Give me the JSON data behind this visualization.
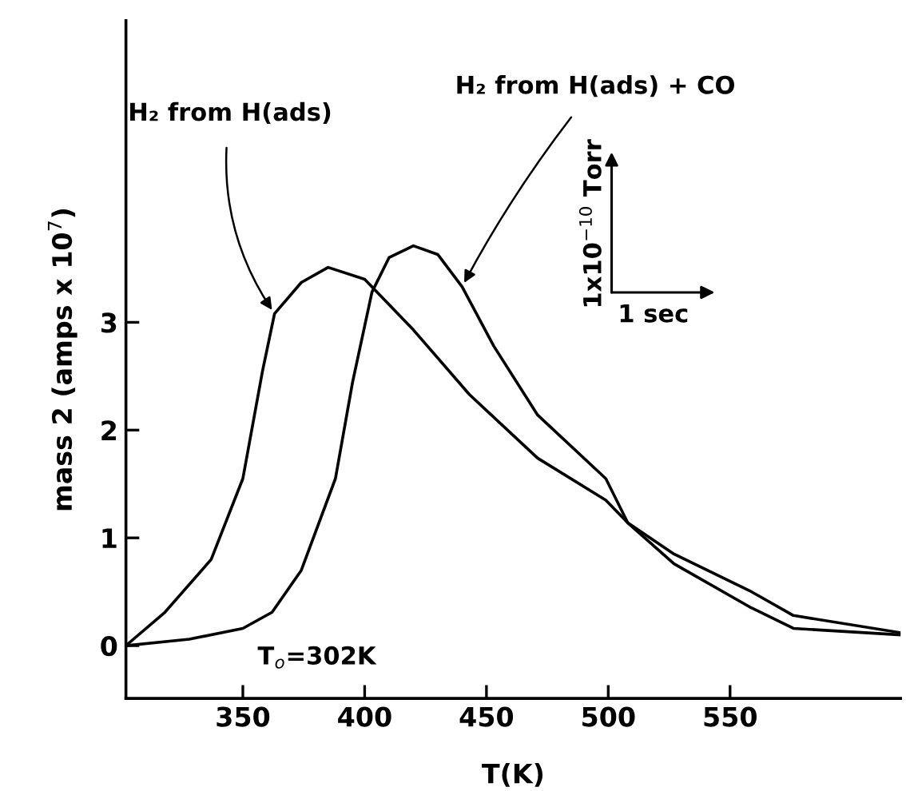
{
  "chart_data": {
    "type": "line",
    "xlabel": "T(K)",
    "ylabel": "mass 2 (amps x 10$^{7}$)",
    "xlim": [
      302,
      620
    ],
    "ylim": [
      -0.49,
      5.8
    ],
    "xticks": [
      350,
      400,
      450,
      500,
      550
    ],
    "yticks": [
      0,
      1,
      2,
      3
    ],
    "grid": false,
    "legend": false,
    "marker": "none",
    "line_style": "solid",
    "series": [
      {
        "color": "#000000",
        "x": [
          302,
          318,
          337,
          350,
          358,
          363,
          374,
          385,
          400,
          420,
          443,
          471,
          499,
          508,
          527,
          558,
          576,
          620
        ],
        "values": [
          0,
          0.31,
          0.8,
          1.55,
          2.54,
          3.08,
          3.37,
          3.51,
          3.4,
          2.93,
          2.33,
          1.74,
          1.35,
          1.14,
          0.85,
          0.51,
          0.28,
          0.12
        ]
      },
      {
        "color": "#000000",
        "x": [
          302,
          328,
          350,
          362,
          374,
          388,
          395,
          403,
          410,
          420,
          430,
          440,
          453,
          471,
          499,
          508,
          527,
          558,
          576,
          620
        ],
        "values": [
          0,
          0.06,
          0.16,
          0.31,
          0.7,
          1.55,
          2.44,
          3.28,
          3.6,
          3.71,
          3.63,
          3.33,
          2.78,
          2.14,
          1.55,
          1.14,
          0.76,
          0.36,
          0.16,
          0.1
        ]
      }
    ],
    "annotations": [
      {
        "text": "H₂ from H(ads)",
        "x": 363,
        "y": 3.08
      },
      {
        "text": "H₂ from H(ads) + CO",
        "x": 440,
        "y": 3.33
      },
      "T$_{o}$=302K",
      "1x10$^{−10}$ Torr",
      "1 sec"
    ]
  }
}
